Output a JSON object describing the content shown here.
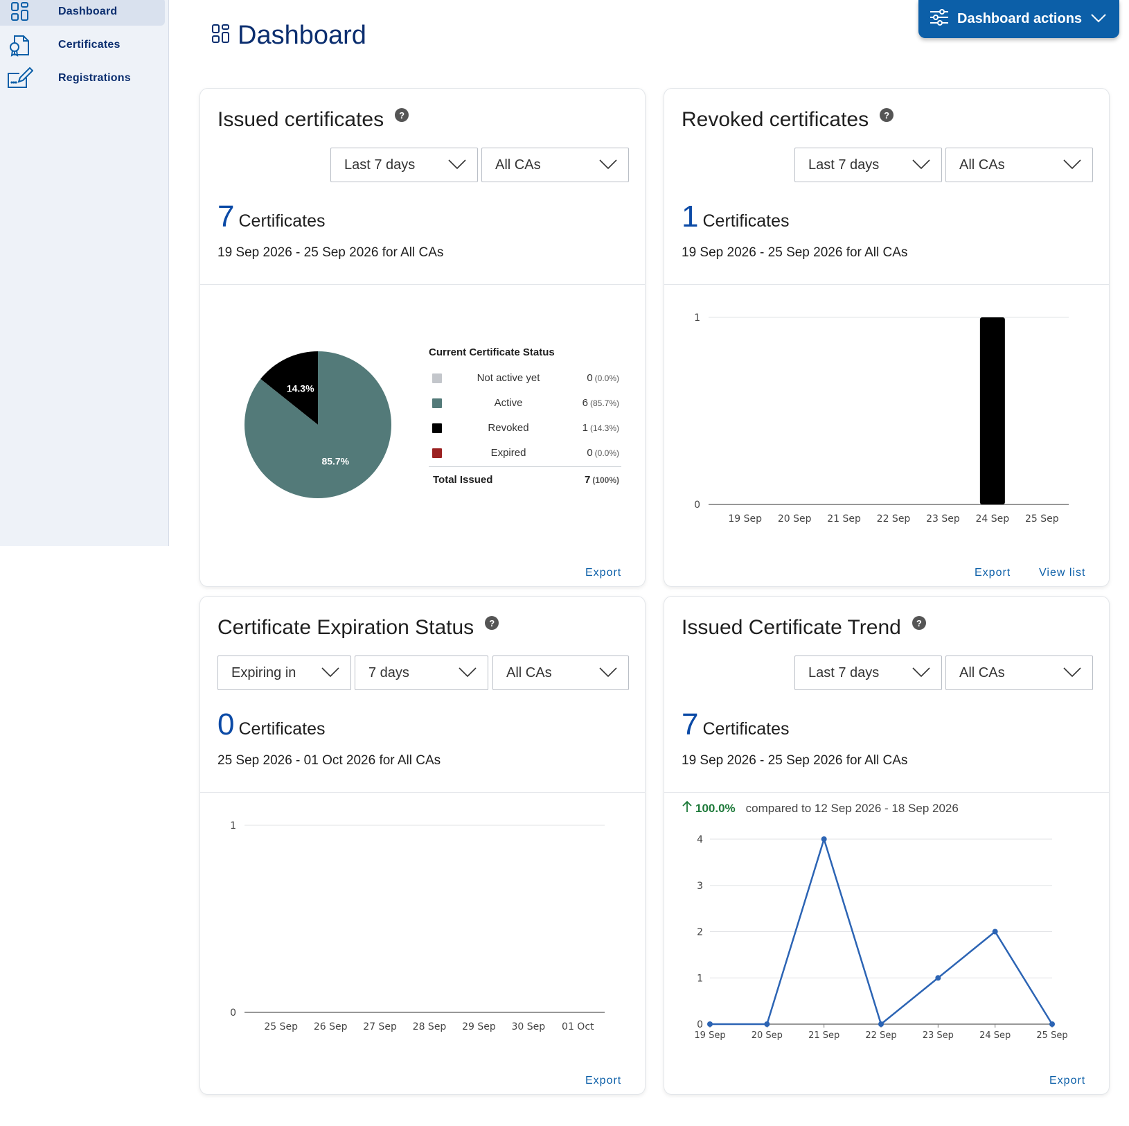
{
  "sidebar": {
    "items": [
      {
        "label": "Dashboard",
        "icon": "dashboard-grid-icon",
        "active": true
      },
      {
        "label": "Certificates",
        "icon": "certificate-icon",
        "active": false
      },
      {
        "label": "Registrations",
        "icon": "registration-edit-icon",
        "active": false
      }
    ]
  },
  "header": {
    "title": "Dashboard",
    "actions_label": "Dashboard actions"
  },
  "colors": {
    "accent": "#0c5fa8",
    "brand_text": "#0b2e6f",
    "count_blue": "#0b4aa6",
    "active": "#537a79",
    "revoked": "#000000",
    "not_active_yet": "#c3c6cb",
    "expired": "#9b2121",
    "trend_line": "#2c64b4",
    "trend_up": "#1e7a3a"
  },
  "issued": {
    "title": "Issued certificates",
    "period": "Last 7 days",
    "ca": "All CAs",
    "count": "7",
    "unit": "Certificates",
    "range": "19 Sep 2026 - 25 Sep 2026 for All CAs",
    "export": "Export",
    "legend": {
      "title": "Current Certificate Status",
      "rows": [
        {
          "name": "Not active yet",
          "value": "0",
          "pct": "(0.0%)"
        },
        {
          "name": "Active",
          "value": "6",
          "pct": "(85.7%)"
        },
        {
          "name": "Revoked",
          "value": "1",
          "pct": "(14.3%)"
        },
        {
          "name": "Expired",
          "value": "0",
          "pct": "(0.0%)"
        }
      ],
      "total": {
        "name": "Total Issued",
        "value": "7",
        "pct": "(100%)"
      }
    }
  },
  "revoked": {
    "title": "Revoked certificates",
    "period": "Last 7 days",
    "ca": "All CAs",
    "count": "1",
    "unit": "Certificates",
    "range": "19 Sep 2026 - 25 Sep 2026 for All CAs",
    "export": "Export",
    "view_list": "View list"
  },
  "expiration": {
    "title": "Certificate Expiration Status",
    "mode": "Expiring in",
    "period": "7 days",
    "ca": "All CAs",
    "count": "0",
    "unit": "Certificates",
    "range": "25 Sep 2026 - 01 Oct 2026 for All CAs",
    "export": "Export"
  },
  "trend": {
    "title": "Issued Certificate Trend",
    "period": "Last 7 days",
    "ca": "All CAs",
    "count": "7",
    "unit": "Certificates",
    "range": "19 Sep 2026 - 25 Sep 2026 for All CAs",
    "change_pct": "100.0%",
    "compared_text": "compared to 12 Sep 2026 - 18 Sep 2026",
    "export": "Export"
  },
  "chart_data": [
    {
      "type": "pie",
      "categories": [
        "Active",
        "Revoked"
      ],
      "values": [
        6,
        1
      ],
      "slice_labels": [
        "85.7%",
        "14.3%"
      ],
      "colors": [
        "#537a79",
        "#000000"
      ],
      "legend": "right"
    },
    {
      "type": "bar",
      "categories": [
        "19 Sep",
        "20 Sep",
        "21 Sep",
        "22 Sep",
        "23 Sep",
        "24 Sep",
        "25 Sep"
      ],
      "values": [
        0,
        0,
        0,
        0,
        0,
        1,
        0
      ],
      "ylim": [
        0,
        1
      ],
      "yticks": [
        "0",
        "1"
      ],
      "grid": true
    },
    {
      "type": "bar",
      "categories": [
        "25 Sep",
        "26 Sep",
        "27 Sep",
        "28 Sep",
        "29 Sep",
        "30 Sep",
        "01 Oct"
      ],
      "values": [
        0,
        0,
        0,
        0,
        0,
        0,
        0
      ],
      "ylim": [
        0,
        1
      ],
      "yticks": [
        "0",
        "1"
      ],
      "grid": true
    },
    {
      "type": "line",
      "categories": [
        "19 Sep",
        "20 Sep",
        "21 Sep",
        "22 Sep",
        "23 Sep",
        "24 Sep",
        "25 Sep"
      ],
      "values": [
        0,
        0,
        4,
        0,
        1,
        2,
        0
      ],
      "ylim": [
        0,
        4
      ],
      "yticks": [
        "0",
        "1",
        "2",
        "3",
        "4"
      ],
      "grid": true
    }
  ]
}
